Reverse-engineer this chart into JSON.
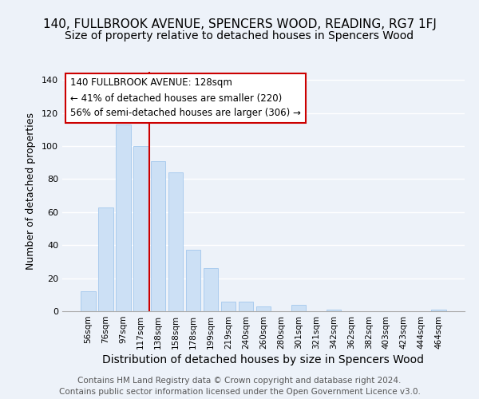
{
  "title": "140, FULLBROOK AVENUE, SPENCERS WOOD, READING, RG7 1FJ",
  "subtitle": "Size of property relative to detached houses in Spencers Wood",
  "xlabel": "Distribution of detached houses by size in Spencers Wood",
  "ylabel": "Number of detached properties",
  "bar_labels": [
    "56sqm",
    "76sqm",
    "97sqm",
    "117sqm",
    "138sqm",
    "158sqm",
    "178sqm",
    "199sqm",
    "219sqm",
    "240sqm",
    "260sqm",
    "280sqm",
    "301sqm",
    "321sqm",
    "342sqm",
    "362sqm",
    "382sqm",
    "403sqm",
    "423sqm",
    "444sqm",
    "464sqm"
  ],
  "bar_values": [
    12,
    63,
    113,
    100,
    91,
    84,
    37,
    26,
    6,
    6,
    3,
    0,
    4,
    0,
    1,
    0,
    0,
    0,
    0,
    0,
    1
  ],
  "bar_color": "#cce0f5",
  "bar_edge_color": "#aaccee",
  "vline_x": 3.5,
  "vline_color": "#cc0000",
  "annotation_line1": "140 FULLBROOK AVENUE: 128sqm",
  "annotation_line2": "← 41% of detached houses are smaller (220)",
  "annotation_line3": "56% of semi-detached houses are larger (306) →",
  "annotation_box_facecolor": "white",
  "annotation_box_edgecolor": "#cc0000",
  "ylim": [
    0,
    145
  ],
  "yticks": [
    0,
    20,
    40,
    60,
    80,
    100,
    120,
    140
  ],
  "footer_line1": "Contains HM Land Registry data © Crown copyright and database right 2024.",
  "footer_line2": "Contains public sector information licensed under the Open Government Licence v3.0.",
  "background_color": "#edf2f9",
  "title_fontsize": 11,
  "subtitle_fontsize": 10,
  "annotation_fontsize": 8.5,
  "footer_fontsize": 7.5,
  "xlabel_fontsize": 10,
  "ylabel_fontsize": 9
}
